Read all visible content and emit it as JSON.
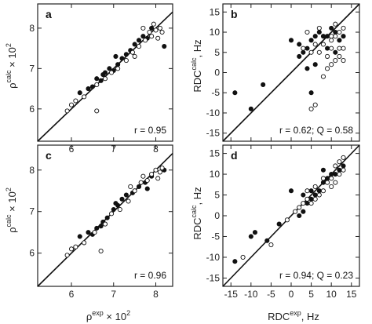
{
  "chart_data": [
    {
      "type": "scatter",
      "panel_label": "a",
      "ylabel": "ρ^calc × 10^2",
      "xlim": [
        5.2,
        8.4
      ],
      "ylim": [
        5.2,
        8.6
      ],
      "xticks": [
        "6",
        "7",
        "8"
      ],
      "yticks": [
        "6",
        "7",
        "8"
      ],
      "annotation": "r = 0.95",
      "series": [
        {
          "marker": "filled",
          "points": [
            [
              6.2,
              6.4
            ],
            [
              6.5,
              6.55
            ],
            [
              6.6,
              6.75
            ],
            [
              6.7,
              6.7
            ],
            [
              6.8,
              6.9
            ],
            [
              6.9,
              7.0
            ],
            [
              7.0,
              6.95
            ],
            [
              7.1,
              7.1
            ],
            [
              7.2,
              7.25
            ],
            [
              7.3,
              7.35
            ],
            [
              7.4,
              7.45
            ],
            [
              7.5,
              7.6
            ],
            [
              7.6,
              7.7
            ],
            [
              7.7,
              7.8
            ],
            [
              7.8,
              7.75
            ],
            [
              7.9,
              8.0
            ],
            [
              8.2,
              7.55
            ],
            [
              6.4,
              6.5
            ],
            [
              7.05,
              7.3
            ],
            [
              6.75,
              6.85
            ]
          ]
        },
        {
          "marker": "open",
          "points": [
            [
              5.9,
              5.95
            ],
            [
              6.0,
              6.1
            ],
            [
              6.1,
              6.2
            ],
            [
              6.3,
              6.3
            ],
            [
              6.6,
              6.6
            ],
            [
              6.8,
              6.75
            ],
            [
              6.95,
              6.9
            ],
            [
              7.1,
              7.0
            ],
            [
              7.3,
              7.2
            ],
            [
              7.45,
              7.4
            ],
            [
              7.6,
              7.55
            ],
            [
              7.75,
              7.7
            ],
            [
              7.85,
              7.9
            ],
            [
              7.9,
              7.8
            ],
            [
              8.0,
              7.95
            ],
            [
              8.1,
              8.0
            ],
            [
              8.15,
              7.9
            ],
            [
              7.7,
              8.0
            ],
            [
              6.6,
              5.95
            ],
            [
              7.5,
              7.3
            ],
            [
              7.95,
              8.1
            ],
            [
              8.05,
              7.75
            ]
          ]
        }
      ]
    },
    {
      "type": "scatter",
      "panel_label": "b",
      "ylabel": "RDC^calc, Hz",
      "xlim": [
        -17,
        17
      ],
      "ylim": [
        -17,
        17
      ],
      "xticks": [],
      "yticks": [
        "15",
        "10",
        "5",
        "0",
        "-5",
        "-10",
        "-15"
      ],
      "annotation": "r = 0.62; Q = 0.58",
      "series": [
        {
          "marker": "filled",
          "points": [
            [
              -14,
              -5
            ],
            [
              -10,
              -9
            ],
            [
              -7,
              -3
            ],
            [
              0,
              8
            ],
            [
              2,
              7
            ],
            [
              3,
              5
            ],
            [
              4,
              6
            ],
            [
              5,
              8
            ],
            [
              6,
              9
            ],
            [
              7,
              10
            ],
            [
              8,
              9
            ],
            [
              9,
              9
            ],
            [
              10,
              11
            ],
            [
              11,
              10
            ],
            [
              12,
              8
            ],
            [
              9,
              6
            ],
            [
              6,
              2
            ],
            [
              4,
              1
            ],
            [
              2,
              4
            ],
            [
              5,
              -5
            ],
            [
              11,
              5
            ],
            [
              13,
              9
            ]
          ]
        },
        {
          "marker": "open",
          "points": [
            [
              3,
              6
            ],
            [
              5,
              5
            ],
            [
              6,
              7
            ],
            [
              7,
              5
            ],
            [
              8,
              7
            ],
            [
              9,
              4
            ],
            [
              10,
              8
            ],
            [
              11,
              9
            ],
            [
              12,
              10
            ],
            [
              13,
              11
            ],
            [
              12,
              4
            ],
            [
              11,
              3
            ],
            [
              10,
              2
            ],
            [
              9,
              1
            ],
            [
              8,
              -1
            ],
            [
              10,
              6
            ],
            [
              12,
              6
            ],
            [
              13,
              6
            ],
            [
              5,
              -9
            ],
            [
              6,
              -8
            ],
            [
              4,
              10
            ],
            [
              7,
              11
            ],
            [
              11,
              12
            ],
            [
              13,
              3
            ],
            [
              10,
              9
            ]
          ]
        }
      ]
    },
    {
      "type": "scatter",
      "panel_label": "c",
      "xlabel": "ρ^exp × 10^2",
      "ylabel": "ρ^calc × 10^2",
      "xlim": [
        5.2,
        8.4
      ],
      "ylim": [
        5.2,
        8.6
      ],
      "xticks": [
        "6",
        "7",
        "8"
      ],
      "yticks": [
        "6",
        "7",
        "8"
      ],
      "annotation": "r = 0.96",
      "series": [
        {
          "marker": "filled",
          "points": [
            [
              6.2,
              6.4
            ],
            [
              6.4,
              6.5
            ],
            [
              6.6,
              6.6
            ],
            [
              6.75,
              6.75
            ],
            [
              6.85,
              6.85
            ],
            [
              7.0,
              7.05
            ],
            [
              7.1,
              7.15
            ],
            [
              7.2,
              7.3
            ],
            [
              7.3,
              7.4
            ],
            [
              7.45,
              7.45
            ],
            [
              7.6,
              7.6
            ],
            [
              7.75,
              7.7
            ],
            [
              7.9,
              7.85
            ],
            [
              8.2,
              8.0
            ],
            [
              6.7,
              6.65
            ],
            [
              7.05,
              7.2
            ],
            [
              6.5,
              6.45
            ],
            [
              7.8,
              7.55
            ]
          ]
        },
        {
          "marker": "open",
          "points": [
            [
              5.9,
              5.95
            ],
            [
              6.0,
              6.1
            ],
            [
              6.1,
              6.15
            ],
            [
              6.3,
              6.25
            ],
            [
              6.55,
              6.5
            ],
            [
              6.8,
              6.7
            ],
            [
              6.95,
              6.95
            ],
            [
              7.15,
              7.05
            ],
            [
              7.35,
              7.25
            ],
            [
              7.5,
              7.5
            ],
            [
              7.65,
              7.7
            ],
            [
              7.8,
              7.75
            ],
            [
              7.9,
              7.9
            ],
            [
              8.0,
              8.0
            ],
            [
              8.1,
              7.95
            ],
            [
              8.15,
              8.05
            ],
            [
              7.7,
              7.85
            ],
            [
              6.7,
              6.05
            ],
            [
              7.4,
              7.6
            ],
            [
              8.05,
              7.8
            ]
          ]
        }
      ]
    },
    {
      "type": "scatter",
      "panel_label": "d",
      "xlabel": "RDC^exp, Hz",
      "ylabel": "RDC^calc, Hz",
      "xlim": [
        -17,
        17
      ],
      "ylim": [
        -17,
        17
      ],
      "xticks": [
        "-15",
        "-10",
        "-5",
        "0",
        "5",
        "10",
        "15"
      ],
      "yticks": [
        "15",
        "10",
        "5",
        "0",
        "-5",
        "-10",
        "-15"
      ],
      "annotation": "r = 0.94; Q = 0.23",
      "series": [
        {
          "marker": "filled",
          "points": [
            [
              -14,
              -11
            ],
            [
              -10,
              -5
            ],
            [
              -9,
              -4
            ],
            [
              -6,
              -6
            ],
            [
              -3,
              -2
            ],
            [
              0,
              6
            ],
            [
              2,
              0
            ],
            [
              3,
              1
            ],
            [
              4,
              3
            ],
            [
              5,
              4
            ],
            [
              6,
              5
            ],
            [
              7,
              6
            ],
            [
              8,
              8
            ],
            [
              9,
              9
            ],
            [
              10,
              10
            ],
            [
              11,
              10
            ],
            [
              12,
              11
            ],
            [
              13,
              12
            ],
            [
              5,
              6
            ],
            [
              8,
              11
            ],
            [
              3,
              5
            ]
          ]
        },
        {
          "marker": "open",
          "points": [
            [
              -1,
              -1
            ],
            [
              1,
              1
            ],
            [
              2,
              2
            ],
            [
              4,
              4
            ],
            [
              5,
              3
            ],
            [
              6,
              7
            ],
            [
              7,
              5
            ],
            [
              8,
              6
            ],
            [
              9,
              8
            ],
            [
              10,
              9
            ],
            [
              11,
              12
            ],
            [
              12,
              13
            ],
            [
              13,
              11
            ],
            [
              10,
              7
            ],
            [
              8,
              9
            ],
            [
              6,
              4
            ],
            [
              4,
              6
            ],
            [
              12,
              10
            ],
            [
              11,
              8
            ],
            [
              -5,
              -7
            ],
            [
              -12,
              -10
            ],
            [
              3,
              3
            ],
            [
              13,
              14
            ]
          ]
        }
      ]
    }
  ]
}
